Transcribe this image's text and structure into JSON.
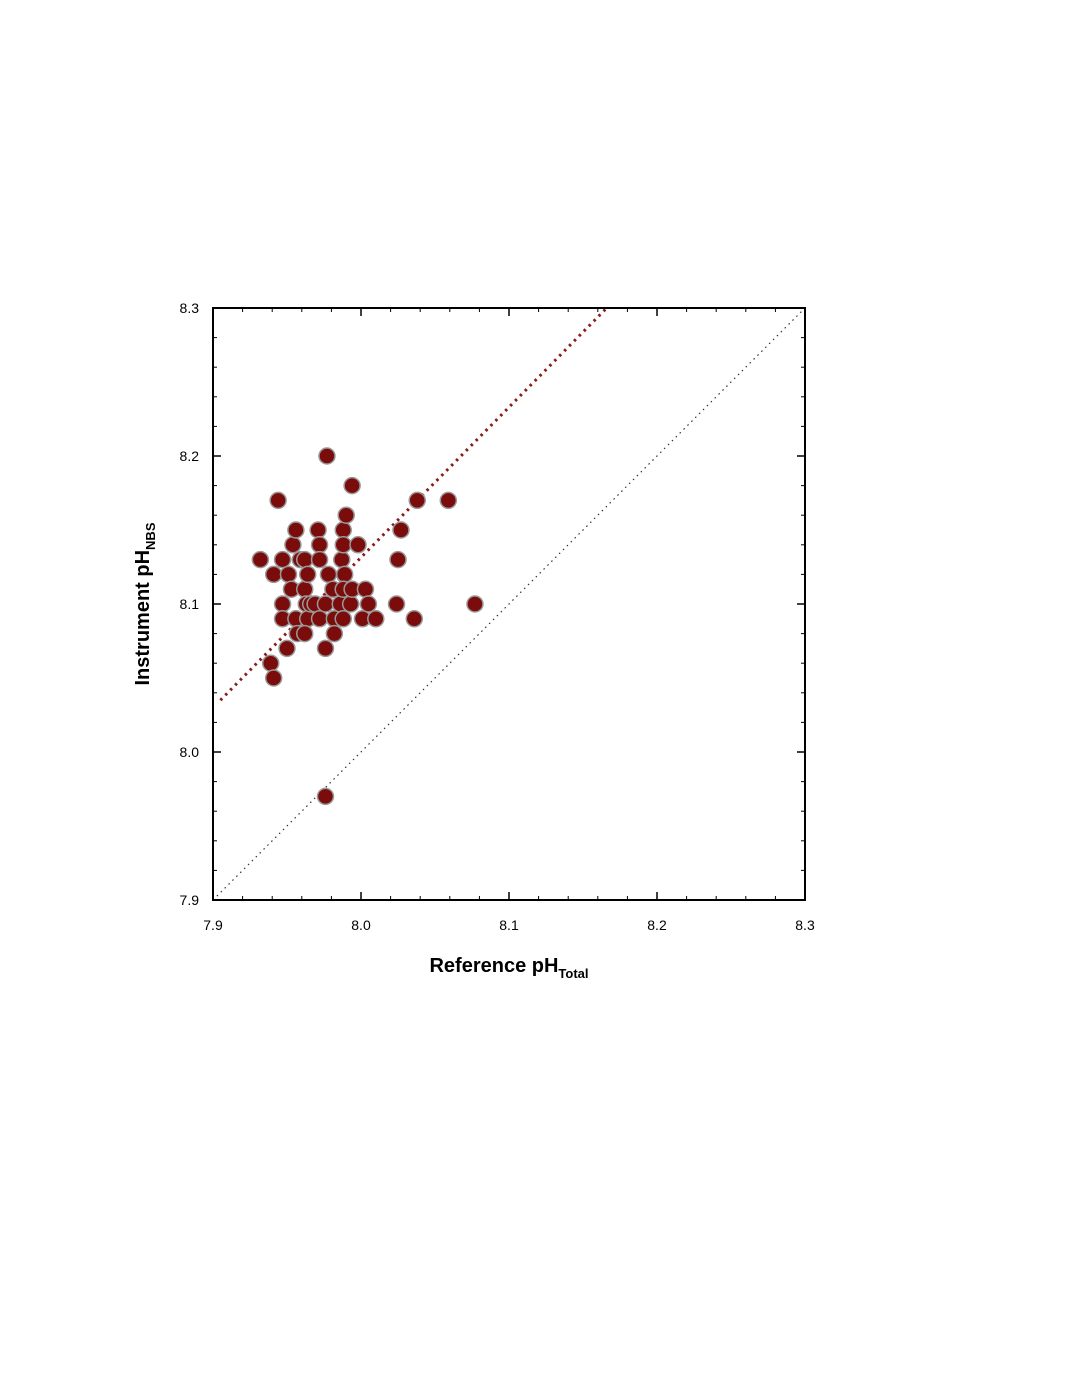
{
  "chart_data": {
    "type": "scatter",
    "xlabel": "Reference pH",
    "xlabel_subscript": "Total",
    "ylabel": "Instrument pH",
    "ylabel_subscript": "NBS",
    "xlim": [
      7.9,
      8.3
    ],
    "ylim": [
      7.9,
      8.3
    ],
    "xticks": [
      7.9,
      {
        "value": 8,
        "label": "8.0"
      },
      8.1,
      8.2,
      8.3
    ],
    "yticks": [
      7.9,
      {
        "value": 8,
        "label": "8.0"
      },
      8.1,
      8.2,
      8.3
    ],
    "xminor": [
      7.92,
      7.94,
      7.96,
      7.98,
      8.02,
      8.04,
      8.06,
      8.08,
      8.12,
      8.14,
      8.16,
      8.18,
      8.22,
      8.24,
      8.26,
      8.28
    ],
    "yminor": [
      7.92,
      7.94,
      7.96,
      7.98,
      8.02,
      8.04,
      8.06,
      8.08,
      8.12,
      8.14,
      8.16,
      8.18,
      8.22,
      8.24,
      8.26,
      8.28
    ],
    "series": [
      {
        "color": "#7a0c0c",
        "x": [
          7.932,
          7.941,
          7.944,
          7.939,
          7.941,
          7.947,
          7.947,
          7.947,
          7.951,
          7.953,
          7.95,
          7.954,
          7.956,
          7.956,
          7.957,
          7.959,
          7.962,
          7.962,
          7.964,
          7.963,
          7.964,
          7.962,
          7.966,
          7.969,
          7.971,
          7.972,
          7.972,
          7.972,
          7.977,
          7.978,
          7.976,
          7.976,
          7.976,
          7.981,
          7.982,
          7.982,
          7.986,
          7.987,
          7.988,
          7.99,
          7.988,
          7.989,
          7.988,
          7.988,
          7.993,
          7.994,
          7.994,
          7.998,
          8.001,
          8.003,
          8.005,
          8.01,
          8.024,
          8.025,
          8.027,
          8.036,
          8.038,
          8.059,
          8.077
        ],
        "y": [
          8.13,
          8.12,
          8.17,
          8.06,
          8.05,
          8.13,
          8.1,
          8.09,
          8.12,
          8.11,
          8.07,
          8.14,
          8.15,
          8.09,
          8.08,
          8.13,
          8.13,
          8.11,
          8.12,
          8.1,
          8.09,
          8.08,
          8.1,
          8.1,
          8.15,
          8.14,
          8.13,
          8.09,
          8.2,
          8.12,
          8.1,
          8.07,
          7.97,
          8.11,
          8.09,
          8.08,
          8.1,
          8.13,
          8.15,
          8.16,
          8.14,
          8.12,
          8.11,
          8.09,
          8.1,
          8.18,
          8.11,
          8.14,
          8.09,
          8.11,
          8.1,
          8.09,
          8.1,
          8.13,
          8.15,
          8.09,
          8.17,
          8.17,
          8.1
        ]
      }
    ],
    "lines": [
      {
        "x": [
          7.9,
          8.3
        ],
        "y": [
          7.9,
          8.3
        ],
        "color": "#333333"
      },
      {
        "x": [
          7.905,
          8.166
        ],
        "y": [
          8.035,
          8.3
        ],
        "color": "#8b1a1a"
      }
    ]
  }
}
